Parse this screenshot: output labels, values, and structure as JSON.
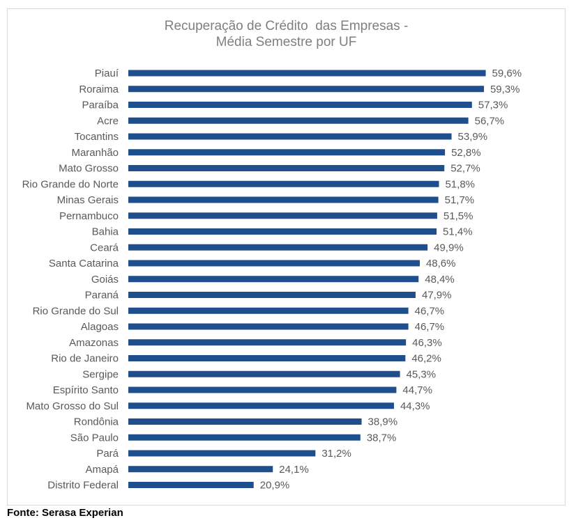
{
  "chart_data": {
    "type": "bar",
    "orientation": "horizontal",
    "title_lines": [
      "Recuperação de Crédito  das Empresas -",
      "Média Semestre por UF"
    ],
    "categories": [
      "Piauí",
      "Roraima",
      "Paraíba",
      "Acre",
      "Tocantins",
      "Maranhão",
      "Mato Grosso",
      "Rio Grande do Norte",
      "Minas Gerais",
      "Pernambuco",
      "Bahia",
      "Ceará",
      "Santa Catarina",
      "Goiás",
      "Paraná",
      "Rio Grande do Sul",
      "Alagoas",
      "Amazonas",
      "Rio de Janeiro",
      "Sergipe",
      "Espírito Santo",
      "Mato Grosso do Sul",
      "Rondônia",
      "São Paulo",
      "Pará",
      "Amapá",
      "Distrito Federal"
    ],
    "values": [
      59.6,
      59.3,
      57.3,
      56.7,
      53.9,
      52.8,
      52.7,
      51.8,
      51.7,
      51.5,
      51.4,
      49.9,
      48.6,
      48.4,
      47.9,
      46.7,
      46.7,
      46.3,
      46.2,
      45.3,
      44.7,
      44.3,
      38.9,
      38.7,
      31.2,
      24.1,
      20.9
    ],
    "value_labels": [
      "59,6%",
      "59,3%",
      "57,3%",
      "56,7%",
      "53,9%",
      "52,8%",
      "52,7%",
      "51,8%",
      "51,7%",
      "51,5%",
      "51,4%",
      "49,9%",
      "48,6%",
      "48,4%",
      "47,9%",
      "46,7%",
      "46,7%",
      "46,3%",
      "46,2%",
      "45,3%",
      "44,7%",
      "44,3%",
      "38,9%",
      "38,7%",
      "31,2%",
      "24,1%",
      "20,9%"
    ],
    "unit": "%",
    "xlim": [
      0,
      60
    ],
    "grid": false,
    "legend": "none",
    "bar_color": "#1f4e8c"
  },
  "source": "Fonte: Serasa Experian"
}
